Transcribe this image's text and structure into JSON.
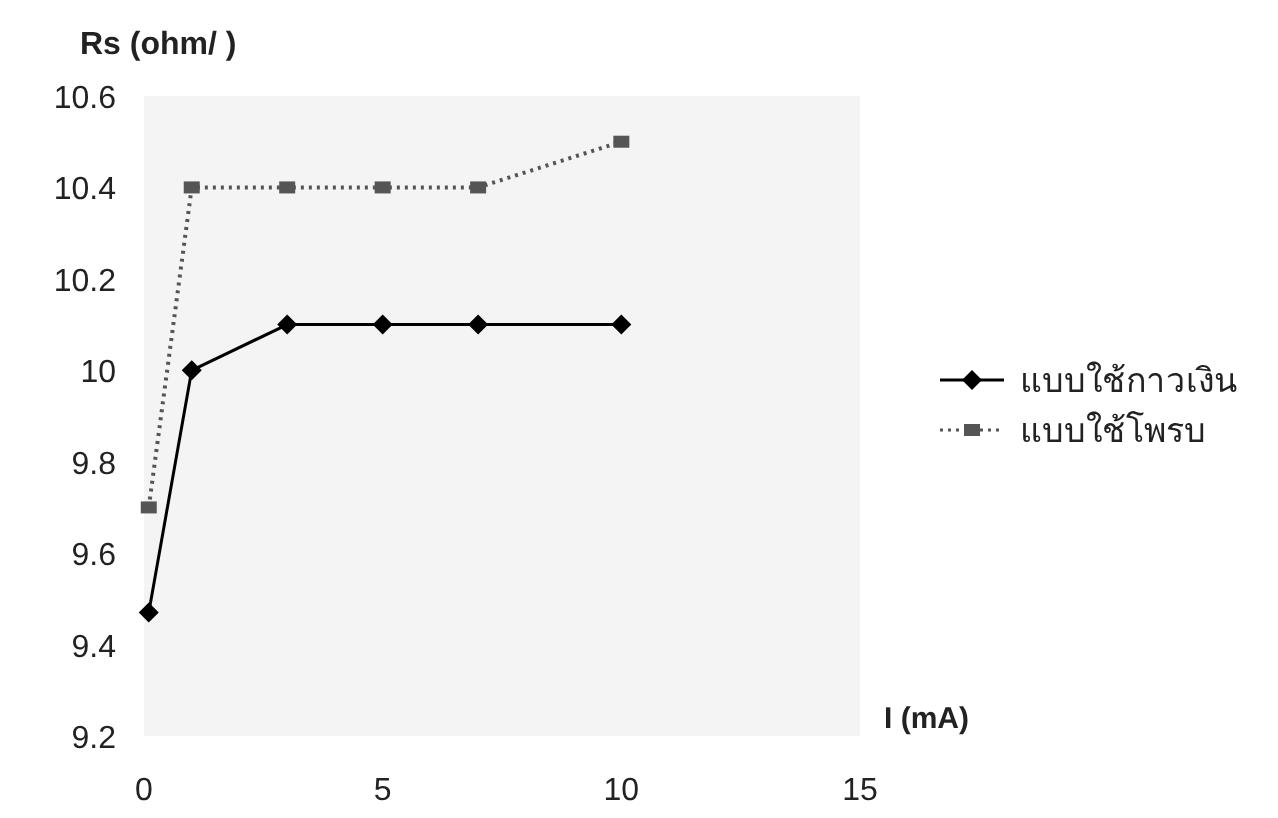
{
  "chart_data": {
    "type": "line",
    "ylabel": "Rs (ohm/ )",
    "xlabel": "I (mA)",
    "xlim": [
      0,
      15
    ],
    "xticks": [
      0,
      5,
      10,
      15
    ],
    "ylim": [
      9.2,
      10.6
    ],
    "yticks": [
      9.2,
      9.4,
      9.6,
      9.8,
      10,
      10.2,
      10.4,
      10.6
    ],
    "grid": false,
    "legend": "right",
    "series": [
      {
        "name": "แบบใช้กาวเงิน",
        "color": "#000000",
        "marker": "diamond",
        "line_style": "solid",
        "x": [
          0.1,
          1,
          3,
          5,
          7,
          10
        ],
        "values": [
          9.47,
          10.0,
          10.1,
          10.1,
          10.1,
          10.1
        ]
      },
      {
        "name": "แบบใช้โพรบ",
        "color": "#555555",
        "marker": "square",
        "line_style": "dotted",
        "x": [
          0.1,
          1,
          3,
          5,
          7,
          10
        ],
        "values": [
          9.7,
          10.4,
          10.4,
          10.4,
          10.4,
          10.5
        ]
      }
    ]
  }
}
